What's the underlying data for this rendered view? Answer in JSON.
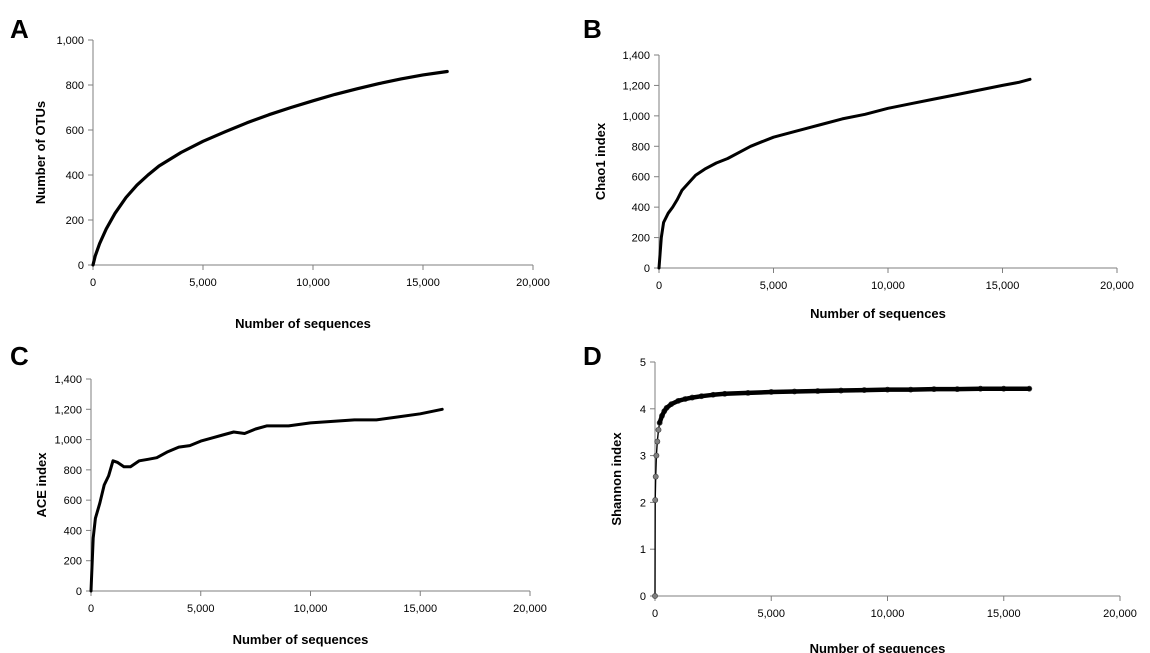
{
  "chart_data": [
    {
      "panel": "A",
      "type": "line",
      "xlabel": "Number of sequences",
      "ylabel": "Number of OTUs",
      "xlim": [
        0,
        20000
      ],
      "ylim": [
        0,
        1000
      ],
      "xticks": [
        "0",
        "5,000",
        "10,000",
        "15,000",
        "20,000"
      ],
      "yticks": [
        "0",
        "200",
        "400",
        "600",
        "800",
        "1,000"
      ],
      "grid": false,
      "series": [
        {
          "x": [
            0,
            100,
            300,
            600,
            1000,
            1500,
            2000,
            2500,
            3000,
            4000,
            5000,
            6000,
            7000,
            8000,
            9000,
            10000,
            11000,
            12000,
            13000,
            14000,
            15000,
            16100
          ],
          "values": [
            0,
            40,
            95,
            160,
            230,
            300,
            355,
            400,
            440,
            500,
            550,
            592,
            632,
            668,
            700,
            730,
            758,
            783,
            806,
            827,
            845,
            860
          ]
        }
      ]
    },
    {
      "panel": "B",
      "type": "line",
      "xlabel": "Number of sequences",
      "ylabel": "Chao1 index",
      "xlim": [
        0,
        20000
      ],
      "ylim": [
        0,
        1400
      ],
      "xticks": [
        "0",
        "5,000",
        "10,000",
        "15,000",
        "20,000"
      ],
      "yticks": [
        "0",
        "200",
        "400",
        "600",
        "800",
        "1,000",
        "1,200",
        "1,400"
      ],
      "grid": false,
      "series": [
        {
          "x": [
            0,
            100,
            200,
            400,
            600,
            800,
            1000,
            1300,
            1600,
            2000,
            2500,
            3000,
            3500,
            4000,
            4500,
            5000,
            6000,
            7000,
            8000,
            9000,
            10000,
            11000,
            12000,
            13000,
            14000,
            15000,
            15700,
            16200
          ],
          "values": [
            0,
            200,
            300,
            360,
            400,
            450,
            510,
            560,
            610,
            650,
            690,
            720,
            760,
            800,
            830,
            860,
            900,
            940,
            980,
            1010,
            1050,
            1080,
            1110,
            1140,
            1170,
            1200,
            1220,
            1240
          ]
        }
      ]
    },
    {
      "panel": "C",
      "type": "line",
      "xlabel": "Number of sequences",
      "ylabel": "ACE index",
      "xlim": [
        0,
        20000
      ],
      "ylim": [
        0,
        1400
      ],
      "xticks": [
        "0",
        "5,000",
        "10,000",
        "15,000",
        "20,000"
      ],
      "yticks": [
        "0",
        "200",
        "400",
        "600",
        "800",
        "1,000",
        "1,200",
        "1,400"
      ],
      "grid": false,
      "series": [
        {
          "x": [
            0,
            100,
            200,
            400,
            600,
            800,
            1000,
            1200,
            1500,
            1800,
            2200,
            2600,
            3000,
            3500,
            4000,
            4500,
            5000,
            5500,
            6000,
            6500,
            7000,
            7500,
            8000,
            9000,
            10000,
            11000,
            12000,
            13000,
            14000,
            15000,
            16000
          ],
          "values": [
            0,
            350,
            480,
            580,
            700,
            760,
            860,
            850,
            820,
            820,
            860,
            870,
            880,
            920,
            950,
            960,
            990,
            1010,
            1030,
            1050,
            1040,
            1070,
            1090,
            1090,
            1110,
            1120,
            1130,
            1130,
            1150,
            1170,
            1200
          ]
        }
      ]
    },
    {
      "panel": "D",
      "type": "line",
      "xlabel": "Number of sequences",
      "ylabel": "Shannon index",
      "xlim": [
        0,
        20000
      ],
      "ylim": [
        0,
        5
      ],
      "xticks": [
        "0",
        "5,000",
        "10,000",
        "15,000",
        "20,000"
      ],
      "yticks": [
        "0",
        "1",
        "2",
        "3",
        "4",
        "5"
      ],
      "grid": false,
      "markers": true,
      "series": [
        {
          "x": [
            0,
            10,
            30,
            60,
            100,
            150,
            200,
            300,
            400,
            500,
            700,
            1000,
            1300,
            1600,
            2000,
            2500,
            3000,
            4000,
            5000,
            6000,
            7000,
            8000,
            9000,
            10000,
            11000,
            12000,
            13000,
            14000,
            15000,
            16100
          ],
          "values": [
            0,
            2.05,
            2.55,
            3.0,
            3.3,
            3.55,
            3.7,
            3.85,
            3.95,
            4.02,
            4.1,
            4.17,
            4.21,
            4.24,
            4.27,
            4.3,
            4.32,
            4.34,
            4.36,
            4.37,
            4.38,
            4.39,
            4.4,
            4.41,
            4.41,
            4.42,
            4.42,
            4.43,
            4.43,
            4.43
          ]
        }
      ]
    }
  ]
}
